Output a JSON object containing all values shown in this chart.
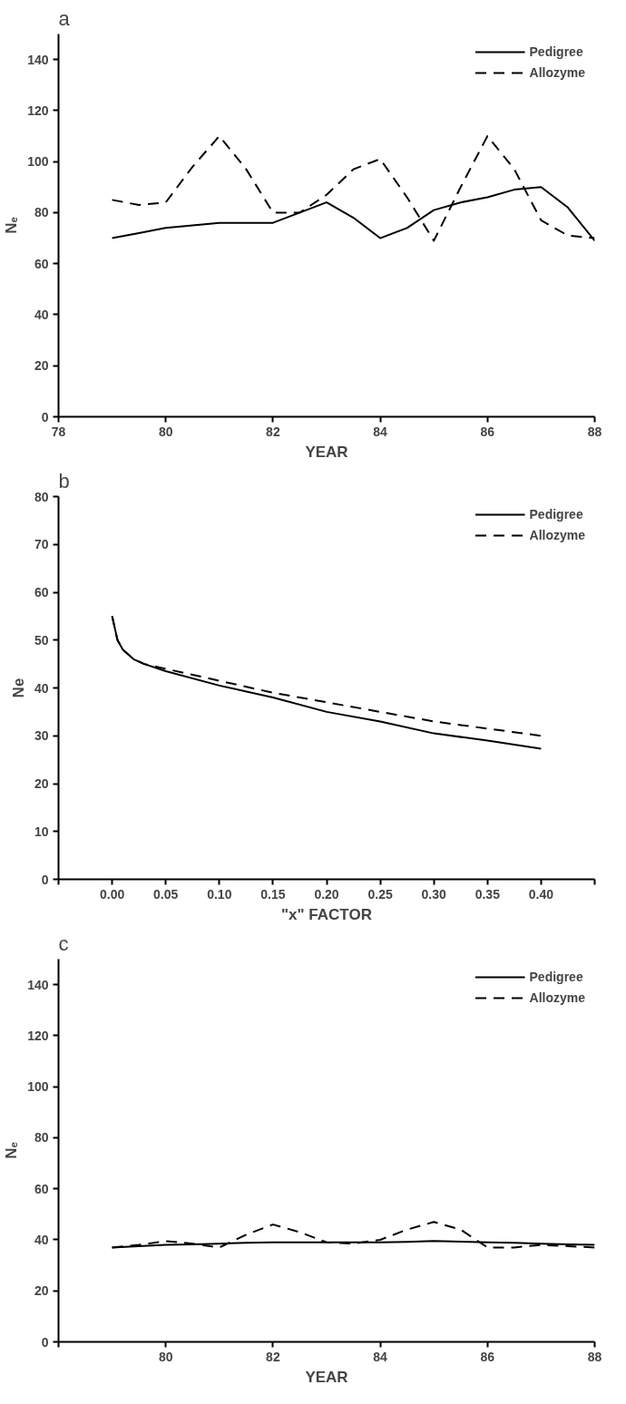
{
  "chart_data": [
    {
      "type": "line",
      "title": "a",
      "xlabel": "YEAR",
      "ylabel": "Nₑ",
      "xlim": [
        78,
        88
      ],
      "xticks": [
        78,
        80,
        82,
        84,
        86,
        88
      ],
      "ylim": [
        0,
        150
      ],
      "yticks": [
        0,
        20,
        40,
        60,
        80,
        100,
        120,
        140
      ],
      "legend": "top right",
      "grid": false,
      "x": [
        79,
        79.5,
        80,
        80.5,
        81,
        81.5,
        82,
        82.5,
        83,
        83.5,
        84,
        84.5,
        85,
        85.5,
        86,
        86.5,
        87,
        87.5,
        88
      ],
      "series": [
        {
          "name": "Pedigree",
          "color": "#000000",
          "line_style": "solid",
          "values": [
            70,
            72,
            74,
            75,
            76,
            76,
            76,
            80,
            84,
            78,
            70,
            74,
            81,
            84,
            86,
            89,
            90,
            82,
            69
          ]
        },
        {
          "name": "Allozyme",
          "color": "#000000",
          "line_style": "dashed",
          "values": [
            85,
            83,
            84,
            98,
            110,
            97,
            80,
            80,
            87,
            97,
            101,
            86,
            69,
            90,
            110,
            97,
            77,
            71,
            70
          ]
        }
      ]
    },
    {
      "type": "line",
      "title": "b",
      "xlabel": "\"x\" FACTOR",
      "ylabel": "Ne",
      "xlim": [
        -0.05,
        0.45
      ],
      "xticks": [
        {
          "value": -0.05,
          "label": null
        },
        {
          "value": 0,
          "label": "0.00"
        },
        {
          "value": 0.05,
          "label": "0.05"
        },
        {
          "value": 0.1,
          "label": "0.10"
        },
        {
          "value": 0.15,
          "label": "0.15"
        },
        {
          "value": 0.2,
          "label": "0.20"
        },
        {
          "value": 0.25,
          "label": "0.25"
        },
        {
          "value": 0.3,
          "label": "0.30"
        },
        {
          "value": 0.35,
          "label": "0.35"
        },
        {
          "value": 0.4,
          "label": "0.40"
        },
        {
          "value": 0.45,
          "label": null
        }
      ],
      "ylim": [
        0,
        80
      ],
      "yticks": [
        0,
        10,
        20,
        30,
        40,
        50,
        60,
        70,
        80
      ],
      "legend": "top right",
      "grid": false,
      "series": [
        {
          "name": "Pedigree",
          "color": "#000000",
          "line_style": "solid",
          "x": [
            0,
            0.005,
            0.01,
            0.02,
            0.03,
            0.05,
            0.1,
            0.15,
            0.2,
            0.25,
            0.3,
            0.35,
            0.4
          ],
          "values": [
            55,
            50,
            48,
            46,
            45,
            43.5,
            40.5,
            38,
            35,
            33,
            30.5,
            29,
            27.3
          ]
        },
        {
          "name": "Allozyme",
          "color": "#000000",
          "line_style": "dashed",
          "x": [
            0,
            0.005,
            0.01,
            0.02,
            0.03,
            0.05,
            0.1,
            0.15,
            0.2,
            0.25,
            0.3,
            0.35,
            0.4
          ],
          "values": [
            55,
            50,
            48,
            46,
            45,
            44,
            41.5,
            39,
            37,
            35,
            33,
            31.5,
            30
          ]
        }
      ]
    },
    {
      "type": "line",
      "title": "c",
      "xlabel": "YEAR",
      "ylabel": "Nₑ",
      "xlim": [
        78,
        88
      ],
      "xticks": [
        {
          "value": 78,
          "label": null
        },
        80,
        82,
        84,
        86,
        88
      ],
      "ylim": [
        0,
        150
      ],
      "yticks": [
        0,
        20,
        40,
        60,
        80,
        100,
        120,
        140
      ],
      "legend": "top right",
      "grid": false,
      "x": [
        79,
        79.5,
        80,
        80.5,
        81,
        81.5,
        82,
        82.5,
        83,
        83.5,
        84,
        84.5,
        85,
        85.5,
        86,
        86.5,
        87,
        87.5,
        88
      ],
      "series": [
        {
          "name": "Pedigree",
          "color": "#000000",
          "line_style": "solid",
          "values": [
            37,
            37.5,
            38,
            38.2,
            38.5,
            38.8,
            39,
            39,
            39,
            39,
            39,
            39.2,
            39.5,
            39.3,
            39,
            38.8,
            38.5,
            38.2,
            38
          ]
        },
        {
          "name": "Allozyme",
          "color": "#000000",
          "line_style": "dashed",
          "values": [
            37,
            38,
            39.5,
            38.5,
            37,
            42,
            46,
            43,
            39,
            38.5,
            40,
            44,
            47,
            44,
            37,
            37,
            38,
            37.5,
            37
          ]
        }
      ]
    }
  ]
}
